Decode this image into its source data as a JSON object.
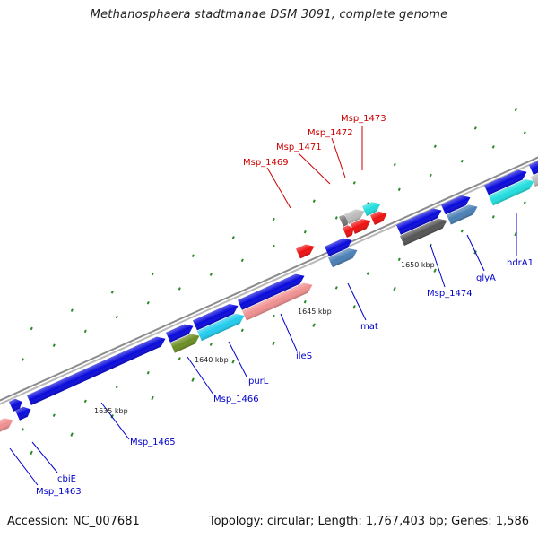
{
  "title": "Methanosphaera stadtmanae DSM 3091, complete genome",
  "footer": {
    "accession": "Accession: NC_007681",
    "topology": "Topology: circular; Length: 1,767,403 bp; Genes: 1,586"
  },
  "colors": {
    "forward_gene": "#0a0adc",
    "red_label": "#cc0000",
    "blue_label": "#0000cc",
    "tick": "#2a8a2a",
    "backbone": "#9a9a9a"
  },
  "kbp_labels": [
    "1635 kbp",
    "1640 kbp",
    "1645 kbp",
    "1650 kbp"
  ],
  "gene_labels": {
    "red": [
      "Msp_1469",
      "Msp_1471",
      "Msp_1472",
      "Msp_1473"
    ],
    "blue": [
      "Msp_1463",
      "cbiE",
      "Msp_1465",
      "Msp_1466",
      "purL",
      "ileS",
      "mat",
      "Msp_1474",
      "glyA",
      "hdrA1"
    ]
  }
}
